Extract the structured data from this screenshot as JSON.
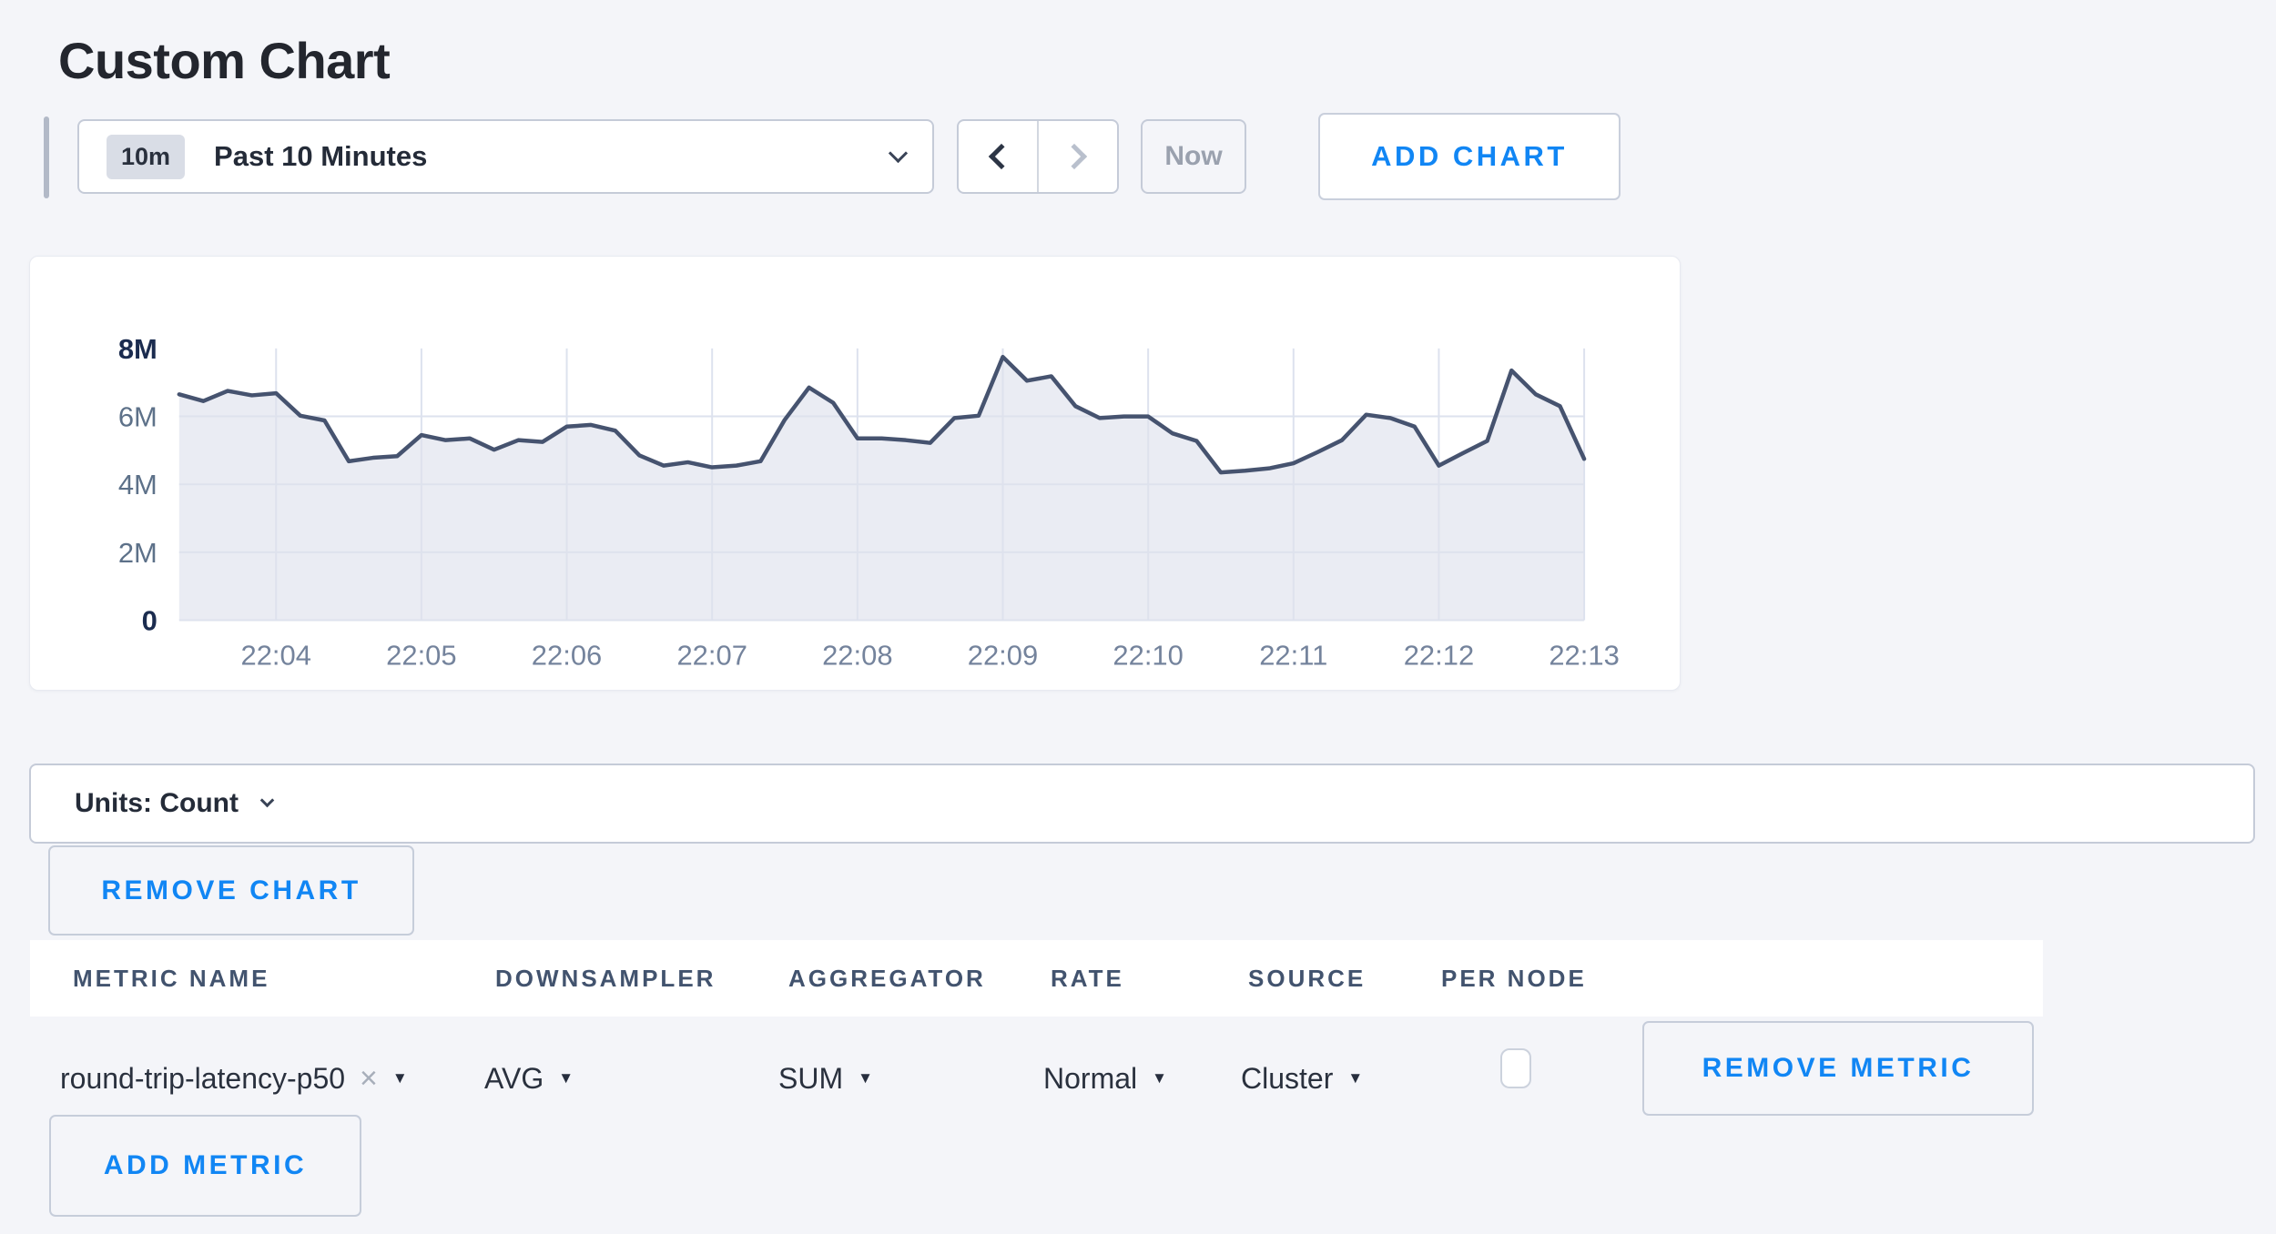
{
  "page": {
    "title": "Custom Chart"
  },
  "toolbar": {
    "range_badge": "10m",
    "range_label": "Past 10 Minutes",
    "now_label": "Now",
    "add_chart_label": "ADD CHART"
  },
  "chart_data": {
    "type": "line",
    "area_fill": true,
    "title": "",
    "xlabel": "",
    "ylabel": "",
    "x_start_time": "22:03:20",
    "x_end_time": "22:13:00",
    "point_interval_seconds": 10,
    "unit": "count (millions)",
    "ylim_millions": [
      0,
      8
    ],
    "values_millions": [
      6.65,
      6.45,
      6.75,
      6.62,
      6.68,
      6.02,
      5.88,
      4.68,
      4.78,
      4.83,
      5.45,
      5.3,
      5.35,
      5.02,
      5.3,
      5.25,
      5.7,
      5.75,
      5.58,
      4.85,
      4.55,
      4.65,
      4.5,
      4.55,
      4.68,
      5.9,
      6.85,
      6.4,
      5.35,
      5.35,
      5.3,
      5.22,
      5.95,
      6.02,
      7.75,
      7.05,
      7.18,
      6.3,
      5.95,
      6.0,
      6.0,
      5.5,
      5.28,
      4.35,
      4.4,
      4.47,
      4.62,
      4.95,
      5.3,
      6.05,
      5.95,
      5.7,
      4.55,
      4.92,
      5.28,
      7.35,
      6.65,
      6.3,
      4.75
    ],
    "x_ticks": [
      {
        "label": "22:04",
        "i": 4
      },
      {
        "label": "22:05",
        "i": 10
      },
      {
        "label": "22:06",
        "i": 16
      },
      {
        "label": "22:07",
        "i": 22
      },
      {
        "label": "22:08",
        "i": 28
      },
      {
        "label": "22:09",
        "i": 34
      },
      {
        "label": "22:10",
        "i": 40
      },
      {
        "label": "22:11",
        "i": 46
      },
      {
        "label": "22:12",
        "i": 52
      },
      {
        "label": "22:13",
        "i": 58
      }
    ],
    "y_ticks": [
      {
        "label": "8M",
        "v": 8,
        "strong": true,
        "grid": false
      },
      {
        "label": "6M",
        "v": 6,
        "strong": false,
        "grid": true
      },
      {
        "label": "4M",
        "v": 4,
        "strong": false,
        "grid": true
      },
      {
        "label": "2M",
        "v": 2,
        "strong": false,
        "grid": true
      },
      {
        "label": "0",
        "v": 0,
        "strong": true,
        "grid": false
      }
    ],
    "grid": true,
    "legend": "none",
    "line_color": "#46536f",
    "fill_color": "rgba(222,226,236,0.65)",
    "grid_color": "#dde2ee",
    "axis_strong_color": "#1b2c4f",
    "axis_label_color": "#5d7189",
    "x_label_color": "#74839c"
  },
  "units_bar": {
    "label": "Units: Count"
  },
  "chart_actions": {
    "remove_chart_label": "REMOVE CHART"
  },
  "metrics_table": {
    "headers": [
      "METRIC NAME",
      "DOWNSAMPLER",
      "AGGREGATOR",
      "RATE",
      "SOURCE",
      "PER NODE"
    ],
    "rows": [
      {
        "metric_name": "round-trip-latency-p50",
        "downsampler": "AVG",
        "aggregator": "SUM",
        "rate": "Normal",
        "source": "Cluster",
        "per_node_checked": false,
        "remove_label": "REMOVE METRIC"
      }
    ],
    "add_metric_label": "ADD METRIC"
  },
  "icons": {
    "select_caret": "▼",
    "remove_x": "×"
  },
  "colors": {
    "accent_blue": "#1186f4",
    "page_background": "#f4f5f9",
    "card_background": "#ffffff",
    "control_border": "#c5cbd8"
  }
}
